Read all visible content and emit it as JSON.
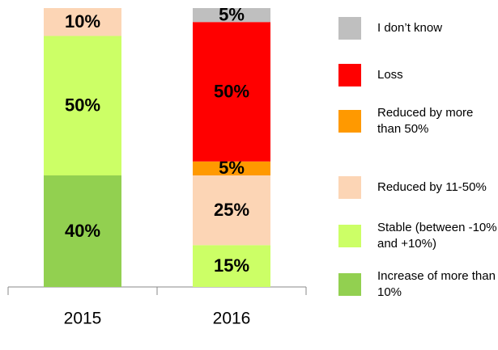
{
  "chart_data": {
    "type": "stacked_bar",
    "categories": [
      "2015",
      "2016"
    ],
    "ylim": [
      0,
      100
    ],
    "series": [
      {
        "name": "Increase of more than 10%",
        "color": "#92d050",
        "values": [
          40,
          null
        ],
        "value_labels": [
          "40%",
          null
        ]
      },
      {
        "name": "Stable (between -10% and +10%)",
        "color": "#ccff66",
        "values": [
          50,
          15
        ],
        "value_labels": [
          "50%",
          "15%"
        ]
      },
      {
        "name": "Reduced by 11-50%",
        "color": "#fcd5b5",
        "values": [
          10,
          25
        ],
        "value_labels": [
          "10%",
          "25%"
        ]
      },
      {
        "name": "Reduced by more than 50%",
        "color": "#ff9900",
        "values": [
          null,
          5
        ],
        "value_labels": [
          null,
          "5%"
        ]
      },
      {
        "name": "Loss",
        "color": "#ff0000",
        "values": [
          null,
          50
        ],
        "value_labels": [
          null,
          "50%"
        ]
      },
      {
        "name": "I don’t know",
        "color": "#bfbfbf",
        "values": [
          null,
          5
        ],
        "value_labels": [
          null,
          "5%"
        ]
      }
    ]
  }
}
